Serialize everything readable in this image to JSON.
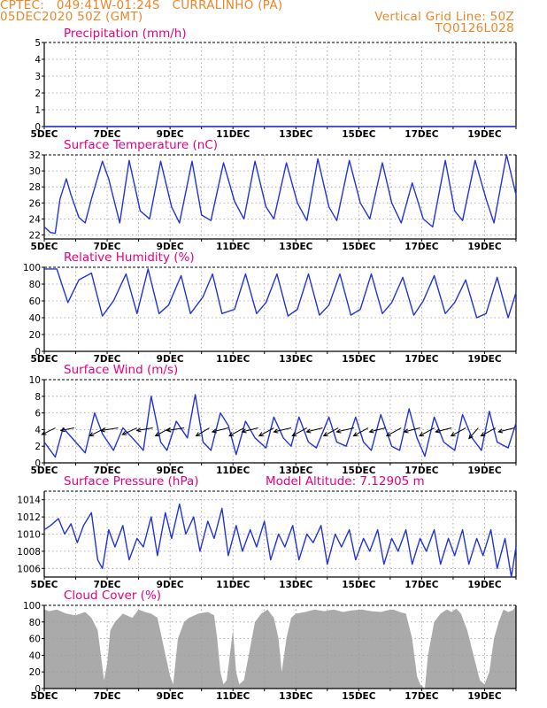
{
  "header": {
    "left_line1": "CPTEC:   049:41W-01:24S   CURRALINHO (PA)",
    "left_line2": "05DEC2020 50Z (GMT)",
    "right_line1": "Vertical Grid Line: 50Z",
    "right_line2": "TQ0126L028"
  },
  "colors": {
    "line": "#2233dd",
    "title": "#e6007e",
    "header": "#e8872a",
    "cloud": "#aaaaaa",
    "grid": "#999999"
  },
  "chart_data": [
    {
      "type": "line",
      "title": "Precipitation (mm/h)",
      "ylim": [
        0,
        5
      ],
      "yticks": [
        0,
        1,
        2,
        3,
        4,
        5
      ],
      "xlim": [
        5,
        20
      ],
      "xticks": [
        5,
        7,
        9,
        11,
        13,
        15,
        17,
        19
      ],
      "xtick_labels": [
        "5DEC",
        "7DEC",
        "9DEC",
        "11DEC",
        "13DEC",
        "15DEC",
        "17DEC",
        "19DEC"
      ],
      "grid": true,
      "series": [
        {
          "x": [
            5,
            20
          ],
          "values": [
            0,
            0
          ]
        }
      ]
    },
    {
      "type": "line",
      "title": "Surface Temperature (nC)",
      "ylim": [
        21.5,
        32
      ],
      "yticks": [
        22,
        24,
        26,
        28,
        30,
        32
      ],
      "xlim": [
        5,
        20
      ],
      "xticks": [
        5,
        7,
        9,
        11,
        13,
        15,
        17,
        19
      ],
      "xtick_labels": [
        "5DEC",
        "7DEC",
        "9DEC",
        "11DEC",
        "13DEC",
        "15DEC",
        "17DEC",
        "19DEC"
      ],
      "grid": true,
      "series": [
        {
          "x": [
            5.0,
            5.2,
            5.35,
            5.5,
            5.7,
            5.85,
            6.1,
            6.3,
            6.5,
            6.85,
            7.05,
            7.4,
            7.7,
            8.05,
            8.35,
            8.7,
            9.05,
            9.3,
            9.7,
            10.0,
            10.3,
            10.7,
            11.05,
            11.35,
            11.7,
            12.05,
            12.3,
            12.7,
            13.05,
            13.35,
            13.7,
            14.05,
            14.3,
            14.7,
            15.05,
            15.35,
            15.75,
            16.05,
            16.35,
            16.7,
            17.05,
            17.35,
            17.75,
            18.05,
            18.3,
            18.7,
            19.05,
            19.3,
            19.7,
            20.0
          ],
          "values": [
            23.0,
            22.3,
            22.2,
            26.5,
            29.0,
            27.0,
            24.2,
            23.5,
            26.5,
            31.2,
            29.0,
            23.5,
            31.3,
            25.0,
            24.0,
            31.2,
            25.5,
            23.5,
            31.2,
            24.5,
            23.8,
            31.0,
            26.2,
            24.0,
            31.2,
            25.5,
            24.0,
            31.0,
            26.0,
            23.8,
            31.5,
            25.5,
            23.8,
            31.3,
            26.0,
            24.0,
            31.0,
            26.0,
            23.5,
            28.5,
            24.0,
            23.0,
            31.3,
            25.0,
            23.8,
            31.3,
            26.5,
            23.5,
            32.0,
            27.0
          ]
        }
      ]
    },
    {
      "type": "line",
      "title": "Relative Humidity (%)",
      "ylim": [
        0,
        100
      ],
      "yticks": [
        0,
        20,
        40,
        60,
        80,
        100
      ],
      "xlim": [
        5,
        20
      ],
      "xticks": [
        5,
        7,
        9,
        11,
        13,
        15,
        17,
        19
      ],
      "xtick_labels": [
        "5DEC",
        "7DEC",
        "9DEC",
        "11DEC",
        "13DEC",
        "15DEC",
        "17DEC",
        "19DEC"
      ],
      "grid": true,
      "series": [
        {
          "x": [
            5.0,
            5.4,
            5.75,
            6.1,
            6.5,
            6.85,
            7.2,
            7.6,
            7.95,
            8.3,
            8.65,
            8.95,
            9.35,
            9.65,
            10.05,
            10.35,
            10.65,
            11.05,
            11.4,
            11.75,
            12.05,
            12.4,
            12.75,
            13.05,
            13.4,
            13.75,
            14.05,
            14.4,
            14.75,
            15.05,
            15.4,
            15.75,
            16.05,
            16.4,
            16.75,
            17.05,
            17.4,
            17.75,
            18.05,
            18.4,
            18.75,
            19.05,
            19.4,
            19.75,
            20.0
          ],
          "values": [
            98,
            98,
            58,
            85,
            93,
            42,
            60,
            92,
            45,
            98,
            45,
            55,
            90,
            45,
            65,
            92,
            45,
            50,
            92,
            45,
            58,
            92,
            42,
            50,
            92,
            43,
            55,
            92,
            43,
            50,
            92,
            45,
            58,
            88,
            43,
            60,
            90,
            45,
            58,
            85,
            40,
            45,
            88,
            40,
            70
          ]
        }
      ]
    },
    {
      "type": "line",
      "title": "Surface Wind (m/s)",
      "ylim": [
        0,
        10
      ],
      "yticks": [
        0,
        2,
        4,
        6,
        8,
        10
      ],
      "xlim": [
        5,
        20
      ],
      "xticks": [
        5,
        7,
        9,
        11,
        13,
        15,
        17,
        19
      ],
      "xtick_labels": [
        "5DEC",
        "7DEC",
        "9DEC",
        "11DEC",
        "13DEC",
        "15DEC",
        "17DEC",
        "19DEC"
      ],
      "grid": true,
      "series": [
        {
          "x": [
            5.0,
            5.35,
            5.6,
            6.0,
            6.3,
            6.6,
            6.85,
            7.2,
            7.5,
            7.85,
            8.15,
            8.4,
            8.7,
            8.9,
            9.2,
            9.55,
            9.8,
            10.05,
            10.3,
            10.6,
            10.85,
            11.1,
            11.4,
            11.7,
            12.05,
            12.3,
            12.6,
            12.85,
            13.1,
            13.4,
            13.65,
            14.05,
            14.3,
            14.6,
            14.9,
            15.15,
            15.4,
            15.7,
            16.05,
            16.3,
            16.6,
            16.85,
            17.1,
            17.4,
            17.7,
            18.05,
            18.3,
            18.6,
            18.9,
            19.15,
            19.4,
            19.75,
            20.0
          ],
          "values": [
            2.5,
            0.7,
            4.2,
            2.5,
            1.2,
            6.0,
            3.5,
            1.5,
            4.2,
            2.8,
            1.5,
            8.0,
            2.5,
            1.5,
            5.0,
            3.0,
            8.2,
            2.5,
            1.5,
            6.0,
            4.5,
            1.0,
            5.0,
            3.0,
            1.8,
            5.5,
            3.0,
            2.0,
            5.5,
            2.5,
            1.8,
            5.5,
            2.5,
            2.0,
            5.5,
            2.5,
            1.5,
            5.8,
            2.0,
            1.5,
            6.5,
            3.0,
            0.8,
            5.5,
            2.5,
            1.5,
            5.8,
            3.0,
            1.5,
            6.2,
            2.5,
            1.8,
            4.8
          ]
        }
      ],
      "wind_vectors": [
        {
          "x": 5.35,
          "y": 4.2,
          "u": -1.0,
          "v": -0.5
        },
        {
          "x": 5.95,
          "y": 4.2,
          "u": -1.0,
          "v": -0.2
        },
        {
          "x": 6.95,
          "y": 4.2,
          "u": -1.2,
          "v": -0.6
        },
        {
          "x": 7.35,
          "y": 4.2,
          "u": -1.3,
          "v": -0.2
        },
        {
          "x": 7.95,
          "y": 4.2,
          "u": -1.1,
          "v": -0.5
        },
        {
          "x": 8.45,
          "y": 4.2,
          "u": -1.2,
          "v": -0.2
        },
        {
          "x": 9.0,
          "y": 4.2,
          "u": -1.1,
          "v": -0.6
        },
        {
          "x": 9.45,
          "y": 4.2,
          "u": -1.3,
          "v": -0.2
        },
        {
          "x": 10.25,
          "y": 4.2,
          "u": -1.0,
          "v": -0.6
        },
        {
          "x": 10.85,
          "y": 4.2,
          "u": -1.2,
          "v": -0.3
        },
        {
          "x": 11.35,
          "y": 4.2,
          "u": -1.1,
          "v": -0.6
        },
        {
          "x": 11.8,
          "y": 4.2,
          "u": -1.2,
          "v": -0.3
        },
        {
          "x": 12.3,
          "y": 4.2,
          "u": -1.1,
          "v": -0.6
        },
        {
          "x": 12.85,
          "y": 4.2,
          "u": -1.3,
          "v": -0.3
        },
        {
          "x": 13.35,
          "y": 4.2,
          "u": -1.1,
          "v": -0.6
        },
        {
          "x": 13.85,
          "y": 4.2,
          "u": -1.2,
          "v": -0.3
        },
        {
          "x": 14.35,
          "y": 4.2,
          "u": -1.1,
          "v": -0.6
        },
        {
          "x": 14.85,
          "y": 4.2,
          "u": -1.3,
          "v": -0.3
        },
        {
          "x": 15.3,
          "y": 4.2,
          "u": -1.1,
          "v": -0.6
        },
        {
          "x": 15.85,
          "y": 4.2,
          "u": -1.2,
          "v": -0.3
        },
        {
          "x": 16.35,
          "y": 4.2,
          "u": -1.1,
          "v": -0.6
        },
        {
          "x": 16.95,
          "y": 4.2,
          "u": -1.2,
          "v": -0.3
        },
        {
          "x": 17.4,
          "y": 4.2,
          "u": -1.1,
          "v": -0.6
        },
        {
          "x": 17.95,
          "y": 4.2,
          "u": -1.2,
          "v": -0.3
        },
        {
          "x": 18.4,
          "y": 4.2,
          "u": -1.1,
          "v": -0.6
        },
        {
          "x": 18.8,
          "y": 4.2,
          "u": -0.7,
          "v": -0.8
        },
        {
          "x": 19.35,
          "y": 4.2,
          "u": -1.1,
          "v": -0.6
        },
        {
          "x": 19.95,
          "y": 4.2,
          "u": -1.2,
          "v": -0.3
        }
      ]
    },
    {
      "type": "line",
      "title": "Surface Pressure (hPa)",
      "annotation": "Model Altitude: 7.12905 m",
      "ylim": [
        1005,
        1015
      ],
      "yticks": [
        1006,
        1008,
        1010,
        1012,
        1014
      ],
      "xlim": [
        5,
        20
      ],
      "xticks": [
        5,
        7,
        9,
        11,
        13,
        15,
        17,
        19
      ],
      "xtick_labels": [
        "5DEC",
        "7DEC",
        "9DEC",
        "11DEC",
        "13DEC",
        "15DEC",
        "17DEC",
        "19DEC"
      ],
      "grid": true,
      "series": [
        {
          "x": [
            5.0,
            5.2,
            5.45,
            5.65,
            5.85,
            6.05,
            6.25,
            6.5,
            6.7,
            6.85,
            7.05,
            7.25,
            7.5,
            7.7,
            7.95,
            8.15,
            8.4,
            8.6,
            8.85,
            9.05,
            9.3,
            9.5,
            9.75,
            9.95,
            10.2,
            10.4,
            10.65,
            10.85,
            11.1,
            11.3,
            11.55,
            11.75,
            12.0,
            12.2,
            12.45,
            12.65,
            12.9,
            13.1,
            13.35,
            13.55,
            13.8,
            14.0,
            14.25,
            14.45,
            14.7,
            14.9,
            15.15,
            15.35,
            15.6,
            15.8,
            16.05,
            16.25,
            16.5,
            16.7,
            16.95,
            17.15,
            17.4,
            17.6,
            17.85,
            18.05,
            18.3,
            18.5,
            18.75,
            18.95,
            19.2,
            19.4,
            19.65,
            19.85,
            20.0
          ],
          "values": [
            1010.5,
            1011.0,
            1011.8,
            1010.0,
            1011.2,
            1009.0,
            1011.0,
            1012.5,
            1007.0,
            1006.0,
            1010.5,
            1008.5,
            1011.0,
            1007.0,
            1009.5,
            1008.5,
            1012.0,
            1007.5,
            1012.5,
            1009.5,
            1013.5,
            1010.0,
            1012.0,
            1008.0,
            1011.5,
            1009.5,
            1013.0,
            1007.5,
            1011.0,
            1008.0,
            1010.5,
            1008.5,
            1011.5,
            1007.0,
            1010.0,
            1008.5,
            1011.0,
            1007.0,
            1010.0,
            1009.0,
            1011.0,
            1006.5,
            1010.0,
            1008.5,
            1010.5,
            1007.0,
            1009.5,
            1008.0,
            1010.5,
            1006.5,
            1009.5,
            1008.0,
            1010.5,
            1006.5,
            1009.5,
            1008.0,
            1010.5,
            1006.5,
            1009.5,
            1007.5,
            1010.5,
            1006.5,
            1009.5,
            1007.5,
            1010.5,
            1006.0,
            1009.5,
            1005.0,
            1008.5
          ]
        }
      ]
    },
    {
      "type": "area",
      "title": "Cloud Cover (%)",
      "ylim": [
        0,
        100
      ],
      "yticks": [
        0,
        20,
        40,
        60,
        80,
        100
      ],
      "xlim": [
        5,
        20
      ],
      "xticks": [
        5,
        7,
        9,
        11,
        13,
        15,
        17,
        19
      ],
      "xtick_labels": [
        "5DEC",
        "7DEC",
        "9DEC",
        "11DEC",
        "13DEC",
        "15DEC",
        "17DEC",
        "19DEC"
      ],
      "grid": true,
      "series": [
        {
          "x": [
            5.0,
            5.15,
            5.4,
            5.7,
            6.0,
            6.3,
            6.5,
            6.7,
            6.8,
            6.9,
            7.0,
            7.1,
            7.25,
            7.5,
            7.8,
            8.0,
            8.2,
            8.4,
            8.6,
            8.8,
            9.0,
            9.1,
            9.25,
            9.45,
            9.6,
            9.9,
            10.2,
            10.4,
            10.5,
            10.6,
            10.7,
            10.8,
            10.9,
            11.0,
            11.1,
            11.2,
            11.35,
            11.5,
            11.7,
            11.9,
            12.1,
            12.3,
            12.45,
            12.55,
            12.7,
            12.85,
            13.0,
            13.3,
            13.6,
            13.9,
            14.2,
            14.5,
            14.8,
            15.1,
            15.4,
            15.7,
            15.9,
            16.1,
            16.3,
            16.5,
            16.7,
            16.85,
            16.95,
            17.1,
            17.2,
            17.4,
            17.6,
            17.8,
            17.95,
            18.1,
            18.25,
            18.45,
            18.65,
            18.85,
            19.0,
            19.15,
            19.3,
            19.45,
            19.6,
            19.75,
            19.9,
            20.0
          ],
          "values": [
            95,
            93,
            95,
            90,
            88,
            92,
            85,
            70,
            40,
            10,
            30,
            70,
            80,
            90,
            85,
            95,
            92,
            90,
            85,
            50,
            15,
            5,
            60,
            80,
            85,
            90,
            92,
            88,
            60,
            20,
            5,
            10,
            40,
            70,
            20,
            5,
            10,
            40,
            80,
            90,
            95,
            85,
            60,
            20,
            60,
            85,
            90,
            92,
            95,
            93,
            95,
            92,
            94,
            95,
            93,
            92,
            94,
            95,
            92,
            90,
            60,
            15,
            5,
            0,
            40,
            80,
            90,
            95,
            92,
            96,
            90,
            70,
            40,
            10,
            5,
            20,
            60,
            80,
            95,
            92,
            94,
            100
          ]
        }
      ]
    }
  ]
}
